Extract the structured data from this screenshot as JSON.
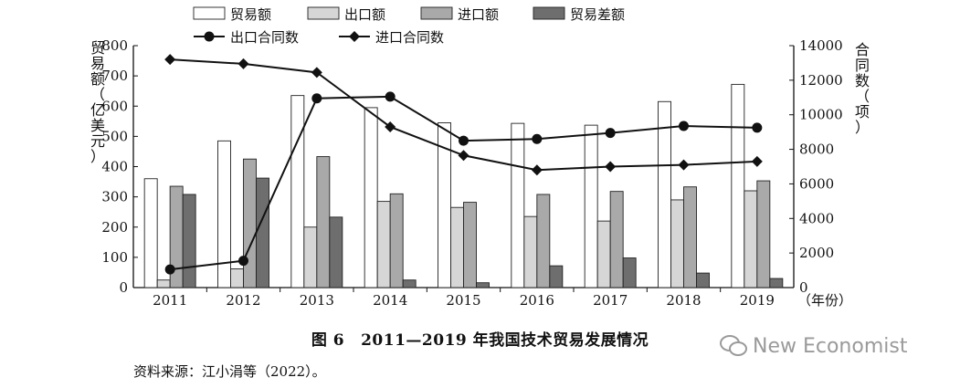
{
  "chart_data": {
    "type": "bar+line",
    "categories": [
      "2011",
      "2012",
      "2013",
      "2014",
      "2015",
      "2016",
      "2017",
      "2018",
      "2019"
    ],
    "series": [
      {
        "name": "贸易额",
        "kind": "bar",
        "axis": "left",
        "color": "#ffffff",
        "values": [
          360,
          485,
          635,
          595,
          545,
          543,
          537,
          615,
          672
        ]
      },
      {
        "name": "出口额",
        "kind": "bar",
        "axis": "left",
        "color": "#d6d6d6",
        "values": [
          25,
          62,
          200,
          285,
          265,
          235,
          220,
          290,
          320
        ]
      },
      {
        "name": "进口额",
        "kind": "bar",
        "axis": "left",
        "color": "#a9a9a9",
        "values": [
          335,
          425,
          433,
          310,
          282,
          308,
          318,
          333,
          353
        ]
      },
      {
        "name": "贸易差额",
        "kind": "bar",
        "axis": "left",
        "color": "#6e6e6e",
        "values": [
          308,
          362,
          233,
          25,
          16,
          72,
          98,
          48,
          30
        ]
      },
      {
        "name": "出口合同数",
        "kind": "line",
        "axis": "right",
        "marker": "circle",
        "values": [
          1050,
          1550,
          10950,
          11050,
          8500,
          8600,
          8950,
          9350,
          9250
        ]
      },
      {
        "name": "进口合同数",
        "kind": "line",
        "axis": "right",
        "marker": "diamond",
        "values": [
          13200,
          12950,
          12450,
          9300,
          7650,
          6800,
          7000,
          7100,
          7300
        ]
      }
    ],
    "left_axis": {
      "label": "贸易额（亿美元）",
      "ylim": [
        0,
        800
      ],
      "ticks": [
        0,
        100,
        200,
        300,
        400,
        500,
        600,
        700,
        800
      ]
    },
    "right_axis": {
      "label": "合同数（项）",
      "ylim": [
        0,
        14000
      ],
      "ticks": [
        0,
        2000,
        4000,
        6000,
        8000,
        10000,
        12000,
        14000
      ]
    },
    "xlabel": "（年份）",
    "legend": "top"
  },
  "caption": {
    "number": "图 6",
    "text": "2011—2019 年我国技术贸易发展情况"
  },
  "source": "资料来源：江小涓等（2022）。",
  "watermark": "New Economist"
}
